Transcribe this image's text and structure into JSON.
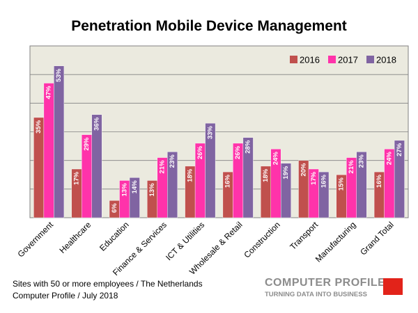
{
  "chart_data": {
    "type": "bar",
    "title": "Penetration Mobile Device Management",
    "categories": [
      "Government",
      "Healthcare",
      "Education",
      "Finance & Services",
      "ICT & Utilities",
      "Wholesale & Retail",
      "Construction",
      "Transport",
      "Manufacturing",
      "Grand Total"
    ],
    "series": [
      {
        "name": "2016",
        "color": "#c0504d",
        "values": [
          35,
          17,
          6,
          13,
          18,
          16,
          18,
          20,
          15,
          16
        ],
        "labels": [
          "35%",
          "17%",
          "6%",
          "13%",
          "18%",
          "16%",
          "18%",
          "20%",
          "15%",
          "16%"
        ]
      },
      {
        "name": "2017",
        "color": "#ff33aa",
        "values": [
          47,
          29,
          13,
          21,
          26,
          26,
          24,
          17,
          21,
          24
        ],
        "labels": [
          "47%",
          "29%",
          "13%",
          "21%",
          "26%",
          "26%",
          "24%",
          "17%",
          "21%",
          "24%"
        ]
      },
      {
        "name": "2018",
        "color": "#8064a2",
        "values": [
          53,
          36,
          14,
          23,
          33,
          28,
          19,
          16,
          23,
          27
        ],
        "labels": [
          "53%",
          "36%",
          "14%",
          "23%",
          "33%",
          "28%",
          "19%",
          "16%",
          "23%",
          "27%"
        ]
      }
    ],
    "ylim": [
      0,
      60
    ],
    "grid": true,
    "legend_position": "top-right",
    "plot_background": "#ebeadf"
  },
  "footnote": {
    "line1": "Sites with 50 or more employees / The Netherlands",
    "line2": "Computer Profile / July 2018"
  },
  "logo": {
    "name": "COMPUTER PROFILE",
    "tagline": "TURNING DATA INTO BUSINESS"
  }
}
